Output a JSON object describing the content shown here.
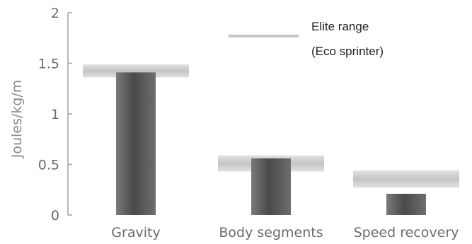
{
  "chart_data": {
    "type": "bar",
    "ylabel": "Joules/kg/m",
    "ylim": [
      0,
      2
    ],
    "yticks": [
      0,
      0.5,
      1,
      1.5,
      2
    ],
    "ytick_labels": [
      "0",
      "0.5",
      "1",
      "1.5",
      "2"
    ],
    "categories": [
      "Gravity",
      "Body segments",
      "Speed recovery"
    ],
    "series": [
      {
        "values": [
          1.41,
          0.56,
          0.21
        ],
        "color": "#5a5a5a"
      }
    ],
    "elite_range": {
      "name": "Elite range (Eco sprinter)",
      "legend_lines": [
        "Elite range",
        "(Eco sprinter)"
      ],
      "ranges": [
        [
          1.36,
          1.49
        ],
        [
          0.43,
          0.59
        ],
        [
          0.27,
          0.44
        ]
      ],
      "color": "#cccccc"
    },
    "grid": false,
    "legend_position": "top-right"
  }
}
